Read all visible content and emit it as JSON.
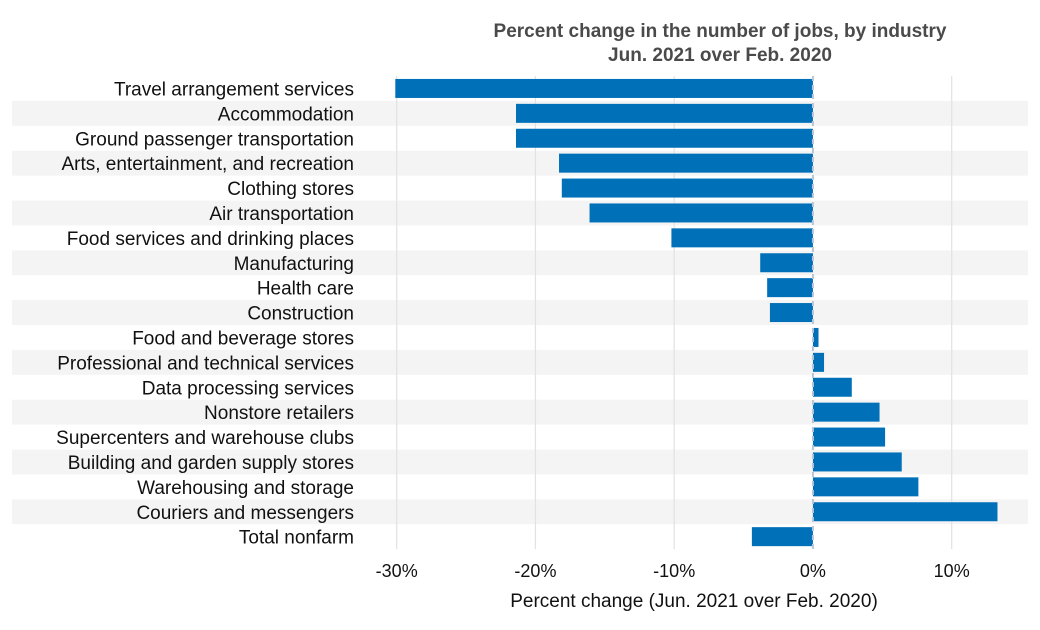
{
  "chart_data": {
    "type": "bar",
    "orientation": "horizontal",
    "title": "Percent change in the number of jobs, by industry",
    "subtitle": "Jun. 2021 over Feb. 2020",
    "xlabel": "Percent change (Jun. 2021 over Feb. 2020)",
    "ylabel": "",
    "xlim": [
      -32.5,
      15.5
    ],
    "xticks": [
      -30,
      -20,
      -10,
      0,
      10
    ],
    "xtick_labels": [
      "-30%",
      "-20%",
      "-10%",
      "0%",
      "10%"
    ],
    "grid": "vertical",
    "categories": [
      "Travel arrangement services",
      "Accommodation",
      "Ground passenger transportation",
      "Arts, entertainment, and recreation",
      "Clothing stores",
      "Air transportation",
      "Food services and drinking places",
      "Manufacturing",
      "Health care",
      "Construction",
      "Food and beverage stores",
      "Professional and technical services",
      "Data processing services",
      "Nonstore retailers",
      "Supercenters and warehouse clubs",
      "Building and garden supply stores",
      "Warehousing and storage",
      "Couriers and messengers",
      "Total nonfarm"
    ],
    "values": [
      -30.1,
      -21.4,
      -21.4,
      -18.3,
      -18.1,
      -16.1,
      -10.2,
      -3.8,
      -3.3,
      -3.1,
      0.4,
      0.8,
      2.8,
      4.8,
      5.2,
      6.4,
      7.6,
      13.3,
      -4.4
    ],
    "bar_color": "#0070b8",
    "band_color": "#f4f4f4",
    "grid_color": "#e2e2e2",
    "zero_line_color": "#b9c4d6"
  }
}
